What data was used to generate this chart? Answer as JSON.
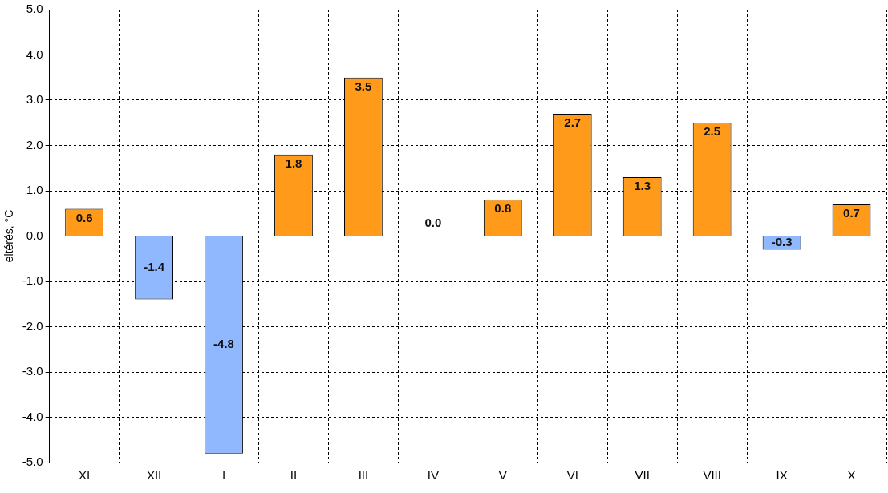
{
  "chart_data": {
    "type": "bar",
    "ylabel": "eltérés, °C",
    "categories": [
      "XI",
      "XII",
      "I",
      "II",
      "III",
      "IV",
      "V",
      "VI",
      "VII",
      "VIII",
      "IX",
      "X"
    ],
    "values": [
      0.6,
      -1.4,
      -4.8,
      1.8,
      3.5,
      0.0,
      0.8,
      2.7,
      1.3,
      2.5,
      -0.3,
      0.7
    ],
    "value_labels": [
      "0.6",
      "-1.4",
      "-4.8",
      "1.8",
      "3.5",
      "0.0",
      "0.8",
      "2.7",
      "1.3",
      "2.5",
      "-0.3",
      "0.7"
    ],
    "colors": [
      "#ff9a1a",
      "#8fb8ff",
      "#8fb8ff",
      "#ff9a1a",
      "#ff9a1a",
      "#ff9a1a",
      "#ff9a1a",
      "#ff9a1a",
      "#ff9a1a",
      "#ff9a1a",
      "#8fb8ff",
      "#ff9a1a"
    ],
    "ylim": [
      -5,
      5
    ],
    "yticks": [
      {
        "value": -5,
        "label": "-5.0"
      },
      {
        "value": -4,
        "label": "-4.0"
      },
      {
        "value": -3,
        "label": "-3.0"
      },
      {
        "value": -2,
        "label": "-2.0"
      },
      {
        "value": -1,
        "label": "-1.0"
      },
      {
        "value": 0,
        "label": "0.0"
      },
      {
        "value": 1,
        "label": "1.0"
      },
      {
        "value": 2,
        "label": "2.0"
      },
      {
        "value": 3,
        "label": "3.0"
      },
      {
        "value": 4,
        "label": "4.0"
      },
      {
        "value": 5,
        "label": "5.0"
      }
    ],
    "grid": true,
    "legend": false
  }
}
